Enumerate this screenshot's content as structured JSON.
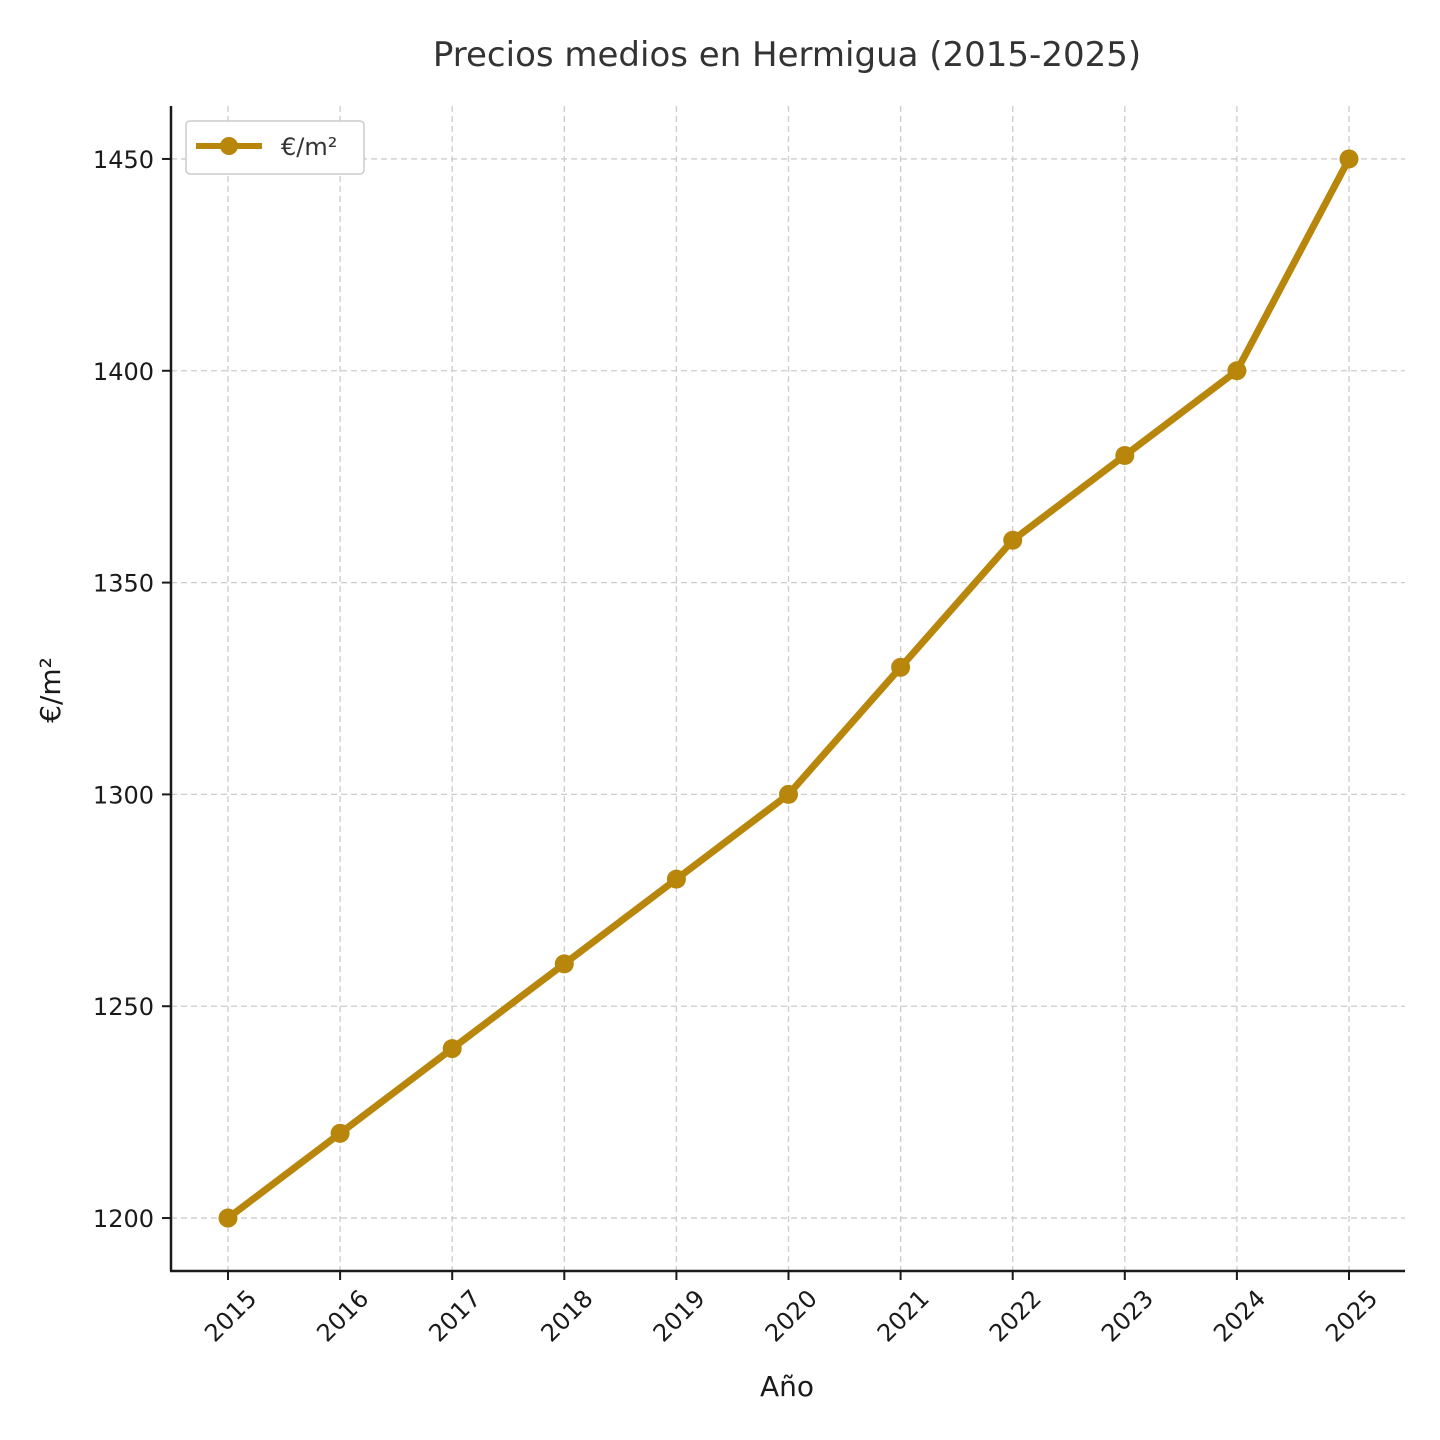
{
  "chart_data": {
    "type": "line",
    "title": "Precios medios en Hermigua (2015-2025)",
    "xlabel": "Año",
    "ylabel": "€/m²",
    "categories": [
      "2015",
      "2016",
      "2017",
      "2018",
      "2019",
      "2020",
      "2021",
      "2022",
      "2023",
      "2024",
      "2025"
    ],
    "series": [
      {
        "name": "€/m²",
        "values": [
          1200,
          1220,
          1240,
          1260,
          1280,
          1300,
          1330,
          1360,
          1380,
          1400,
          1450
        ]
      }
    ],
    "yticks": [
      "1200",
      "1250",
      "1300",
      "1350",
      "1400",
      "1450"
    ],
    "ylim": [
      1187.5,
      1462.5
    ],
    "grid": true,
    "legend_position": "top-left",
    "colors": {
      "series": "#b8860b",
      "grid": "#cccccc",
      "axis": "#1a1a1a"
    }
  }
}
